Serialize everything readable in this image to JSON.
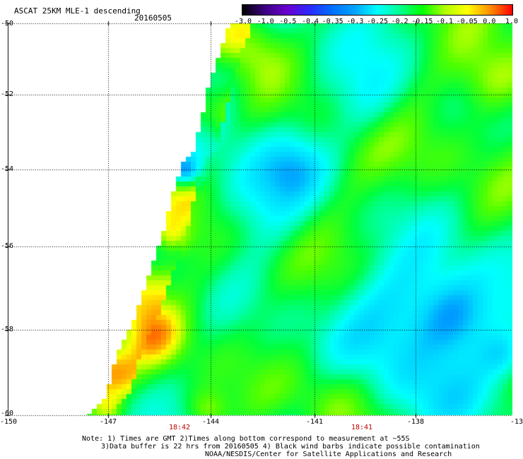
{
  "header": {
    "title": "ASCAT 25KM MLE-1 descending",
    "date": "20160505"
  },
  "colorbar": {
    "labels": [
      "-3.0",
      "-1.0",
      "-0.5",
      "-0.4",
      "-0.35",
      "-0.3",
      "-0.25",
      "-0.2",
      "-0.15",
      "-0.1",
      "-0.05",
      "0.0",
      "1.0"
    ],
    "colors": [
      "#000000",
      "#3c0082",
      "#6a00d0",
      "#2a2aff",
      "#0070ff",
      "#00a4ff",
      "#00ffff",
      "#00ff90",
      "#00ff00",
      "#b0ff00",
      "#ffff00",
      "#ff9000",
      "#ff0000"
    ]
  },
  "map": {
    "lat_labels": [
      "-50",
      "-52",
      "-54",
      "-56",
      "-58",
      "-60"
    ],
    "lon_labels": [
      "-150",
      "-147",
      "-144",
      "-141",
      "-138",
      "-13"
    ],
    "times": [
      "18:42",
      "18:41"
    ]
  },
  "notes": {
    "line1": "Note: 1) Times are GMT 2)Times along bottom correspond to measurement at ~55S",
    "line2": "3)Data buffer is 22 hrs from 20160505 4) Black wind barbs indicate possible contamination",
    "line3": "NOAA/NESDIS/Center for Satellite Applications and Research"
  }
}
